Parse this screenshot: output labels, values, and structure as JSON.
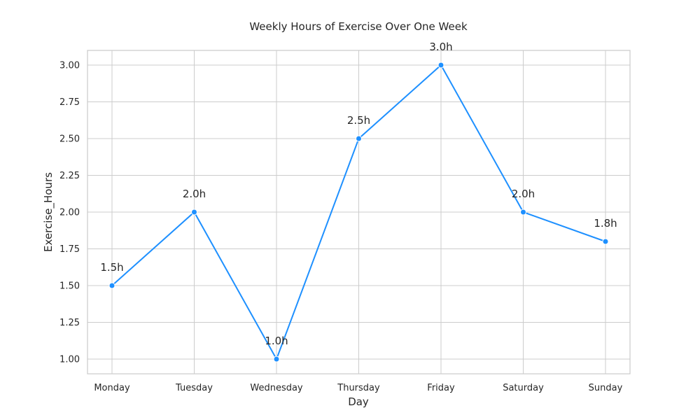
{
  "chart_data": {
    "type": "line",
    "title": "Weekly Hours of Exercise Over One Week",
    "xlabel": "Day",
    "ylabel": "Exercise_Hours",
    "categories": [
      "Monday",
      "Tuesday",
      "Wednesday",
      "Thursday",
      "Friday",
      "Saturday",
      "Sunday"
    ],
    "series": [
      {
        "values": [
          1.5,
          2.0,
          1.0,
          2.5,
          3.0,
          2.0,
          1.8
        ],
        "color": "#1E90FF"
      }
    ],
    "data_labels": [
      "1.5h",
      "2.0h",
      "1.0h",
      "2.5h",
      "3.0h",
      "2.0h",
      "1.8h"
    ],
    "yticks": [
      "1.00",
      "1.25",
      "1.50",
      "1.75",
      "2.00",
      "2.25",
      "2.50",
      "2.75",
      "3.00"
    ],
    "ylim": [
      0.9,
      3.1
    ],
    "grid": true
  }
}
